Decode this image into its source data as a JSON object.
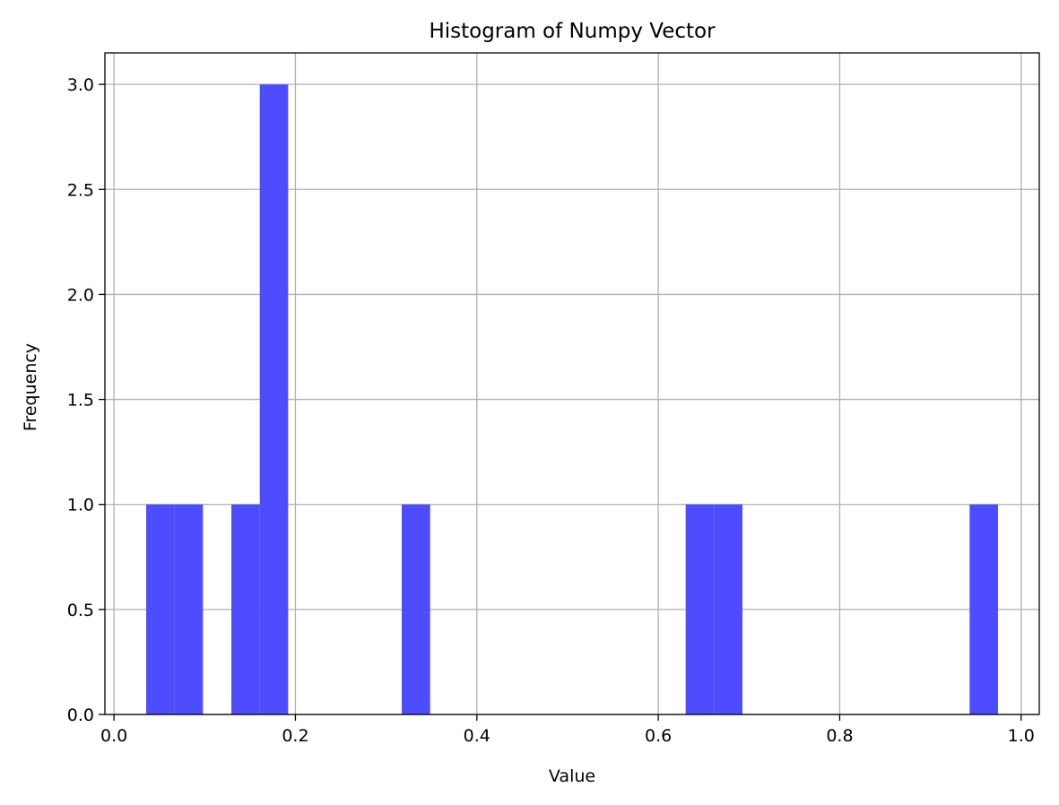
{
  "chart_data": {
    "type": "bar",
    "title": "Histogram of Numpy Vector",
    "xlabel": "Value",
    "ylabel": "Frequency",
    "xlim": [
      -0.01,
      1.02
    ],
    "ylim": [
      0,
      3.15
    ],
    "grid": true,
    "bar_color": "#4d4dff",
    "x_ticks": [
      {
        "value": 0.0,
        "label": "0.0"
      },
      {
        "value": 0.2,
        "label": "0.2"
      },
      {
        "value": 0.4,
        "label": "0.4"
      },
      {
        "value": 0.6,
        "label": "0.6"
      },
      {
        "value": 0.8,
        "label": "0.8"
      },
      {
        "value": 1.0,
        "label": "1.0"
      }
    ],
    "y_ticks": [
      {
        "value": 0.0,
        "label": "0.0"
      },
      {
        "value": 0.5,
        "label": "0.5"
      },
      {
        "value": 1.0,
        "label": "1.0"
      },
      {
        "value": 1.5,
        "label": "1.5"
      },
      {
        "value": 2.0,
        "label": "2.0"
      },
      {
        "value": 2.5,
        "label": "2.5"
      },
      {
        "value": 3.0,
        "label": "3.0"
      }
    ],
    "bins": [
      {
        "x0": 0.0355,
        "x1": 0.0668,
        "count": 1
      },
      {
        "x0": 0.0668,
        "x1": 0.0981,
        "count": 1
      },
      {
        "x0": 0.1294,
        "x1": 0.1607,
        "count": 1
      },
      {
        "x0": 0.1607,
        "x1": 0.192,
        "count": 3
      },
      {
        "x0": 0.3172,
        "x1": 0.3485,
        "count": 1
      },
      {
        "x0": 0.6302,
        "x1": 0.6615,
        "count": 1
      },
      {
        "x0": 0.6615,
        "x1": 0.6928,
        "count": 1
      },
      {
        "x0": 0.9432,
        "x1": 0.9745,
        "count": 1
      }
    ]
  }
}
